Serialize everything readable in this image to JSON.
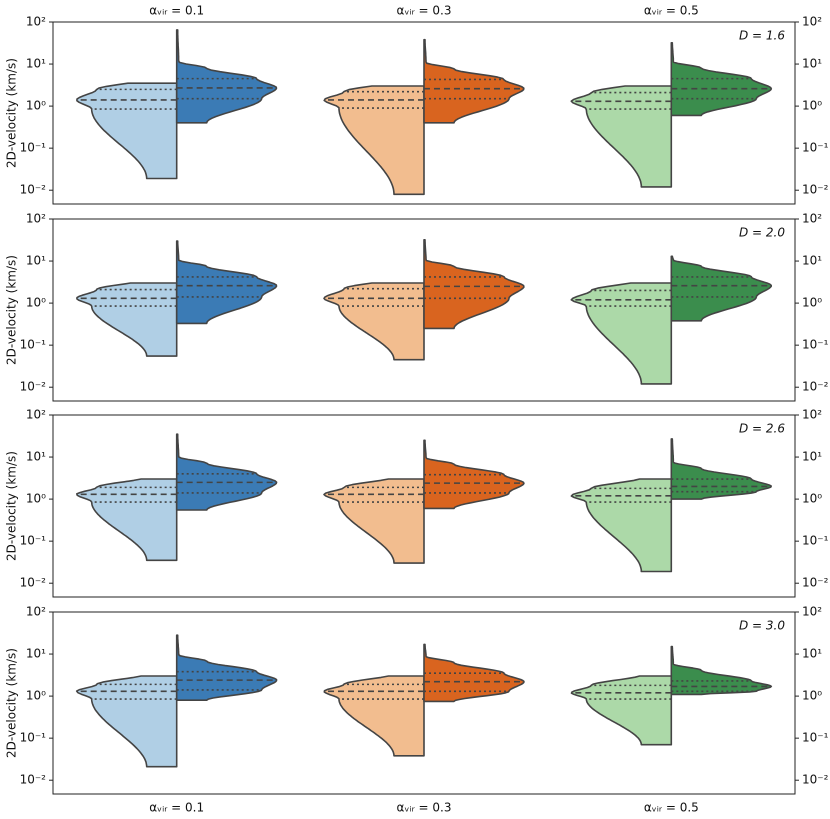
{
  "chart_data": [
    {
      "type": "violin",
      "annotation": "D = 1.6",
      "ylabel": "2D-velocity (km/s)",
      "log": true,
      "categories": [
        "αᵥᵢᵣ = 0.1",
        "αᵥᵢᵣ = 0.3",
        "αᵥᵢᵣ = 0.5"
      ],
      "category_axis": "top",
      "ylim": [
        0.0047,
        100
      ],
      "yticks": [
        {
          "value": 0.01,
          "label": "10⁻²"
        },
        {
          "value": 0.1,
          "label": "10⁻¹"
        },
        {
          "value": 1,
          "label": "10⁰"
        },
        {
          "value": 10,
          "label": "10¹"
        },
        {
          "value": 100,
          "label": "10²"
        }
      ],
      "violins": [
        {
          "left": {
            "color": "#b0cfe5",
            "min": 0.019,
            "q1": 0.85,
            "median": 1.4,
            "q3": 2.5,
            "max": 3.5
          },
          "right": {
            "color": "#3b7bb5",
            "min": 0.4,
            "q1": 1.5,
            "median": 2.7,
            "q3": 4.5,
            "max": 65
          }
        },
        {
          "left": {
            "color": "#f2bd8f",
            "min": 0.008,
            "q1": 0.9,
            "median": 1.4,
            "q3": 2.2,
            "max": 3
          },
          "right": {
            "color": "#d9641f",
            "min": 0.4,
            "q1": 1.5,
            "median": 2.6,
            "q3": 4.3,
            "max": 38
          }
        },
        {
          "left": {
            "color": "#acd9a8",
            "min": 0.012,
            "q1": 0.85,
            "median": 1.3,
            "q3": 2.1,
            "max": 3
          },
          "right": {
            "color": "#3b8d4d",
            "min": 0.6,
            "q1": 1.5,
            "median": 2.6,
            "q3": 4.5,
            "max": 32
          }
        }
      ]
    },
    {
      "type": "violin",
      "annotation": "D = 2.0",
      "ylabel": "2D-velocity (km/s)",
      "log": true,
      "ylim": [
        0.0047,
        100
      ],
      "yticks": [
        {
          "value": 0.01,
          "label": "10⁻²"
        },
        {
          "value": 0.1,
          "label": "10⁻¹"
        },
        {
          "value": 1,
          "label": "10⁰"
        },
        {
          "value": 10,
          "label": "10¹"
        },
        {
          "value": 100,
          "label": "10²"
        }
      ],
      "violins": [
        {
          "left": {
            "color": "#b0cfe5",
            "min": 0.055,
            "q1": 0.85,
            "median": 1.3,
            "q3": 2.1,
            "max": 3
          },
          "right": {
            "color": "#3b7bb5",
            "min": 0.33,
            "q1": 1.4,
            "median": 2.6,
            "q3": 4.2,
            "max": 30
          }
        },
        {
          "left": {
            "color": "#f2bd8f",
            "min": 0.045,
            "q1": 0.85,
            "median": 1.3,
            "q3": 2.2,
            "max": 3
          },
          "right": {
            "color": "#d9641f",
            "min": 0.25,
            "q1": 1.3,
            "median": 2.5,
            "q3": 4.2,
            "max": 32
          }
        },
        {
          "left": {
            "color": "#acd9a8",
            "min": 0.012,
            "q1": 0.85,
            "median": 1.2,
            "q3": 2.0,
            "max": 3
          },
          "right": {
            "color": "#3b8d4d",
            "min": 0.38,
            "q1": 1.4,
            "median": 2.6,
            "q3": 4.2,
            "max": 13
          }
        }
      ]
    },
    {
      "type": "violin",
      "annotation": "D = 2.6",
      "ylabel": "2D-velocity (km/s)",
      "log": true,
      "ylim": [
        0.0047,
        100
      ],
      "yticks": [
        {
          "value": 0.01,
          "label": "10⁻²"
        },
        {
          "value": 0.1,
          "label": "10⁻¹"
        },
        {
          "value": 1,
          "label": "10⁰"
        },
        {
          "value": 10,
          "label": "10¹"
        },
        {
          "value": 100,
          "label": "10²"
        }
      ],
      "violins": [
        {
          "left": {
            "color": "#b0cfe5",
            "min": 0.035,
            "q1": 0.85,
            "median": 1.3,
            "q3": 1.9,
            "max": 3
          },
          "right": {
            "color": "#3b7bb5",
            "min": 0.55,
            "q1": 1.4,
            "median": 2.5,
            "q3": 4.0,
            "max": 35
          }
        },
        {
          "left": {
            "color": "#f2bd8f",
            "min": 0.03,
            "q1": 0.85,
            "median": 1.3,
            "q3": 1.9,
            "max": 3
          },
          "right": {
            "color": "#d9641f",
            "min": 0.6,
            "q1": 1.4,
            "median": 2.4,
            "q3": 3.8,
            "max": 25
          }
        },
        {
          "left": {
            "color": "#acd9a8",
            "min": 0.019,
            "q1": 0.85,
            "median": 1.2,
            "q3": 1.8,
            "max": 3
          },
          "right": {
            "color": "#3b8d4d",
            "min": 1.0,
            "q1": 1.5,
            "median": 2.0,
            "q3": 3.0,
            "max": 27
          }
        }
      ]
    },
    {
      "type": "violin",
      "annotation": "D = 3.0",
      "ylabel": "2D-velocity (km/s)",
      "log": true,
      "categories": [
        "αᵥᵢᵣ = 0.1",
        "αᵥᵢᵣ = 0.3",
        "αᵥᵢᵣ = 0.5"
      ],
      "category_axis": "bottom",
      "ylim": [
        0.0047,
        100
      ],
      "yticks": [
        {
          "value": 0.01,
          "label": "10⁻²"
        },
        {
          "value": 0.1,
          "label": "10⁻¹"
        },
        {
          "value": 1,
          "label": "10⁰"
        },
        {
          "value": 10,
          "label": "10¹"
        },
        {
          "value": 100,
          "label": "10²"
        }
      ],
      "violins": [
        {
          "left": {
            "color": "#b0cfe5",
            "min": 0.021,
            "q1": 0.85,
            "median": 1.3,
            "q3": 1.9,
            "max": 3
          },
          "right": {
            "color": "#3b7bb5",
            "min": 0.8,
            "q1": 1.4,
            "median": 2.4,
            "q3": 3.8,
            "max": 28
          }
        },
        {
          "left": {
            "color": "#f2bd8f",
            "min": 0.038,
            "q1": 0.85,
            "median": 1.3,
            "q3": 1.9,
            "max": 3
          },
          "right": {
            "color": "#d9641f",
            "min": 0.75,
            "q1": 1.3,
            "median": 2.2,
            "q3": 3.5,
            "max": 17
          }
        },
        {
          "left": {
            "color": "#acd9a8",
            "min": 0.07,
            "q1": 0.85,
            "median": 1.2,
            "q3": 1.8,
            "max": 3
          },
          "right": {
            "color": "#3b8d4d",
            "min": 1.1,
            "q1": 1.3,
            "median": 1.7,
            "q3": 2.3,
            "max": 15
          }
        }
      ]
    }
  ]
}
